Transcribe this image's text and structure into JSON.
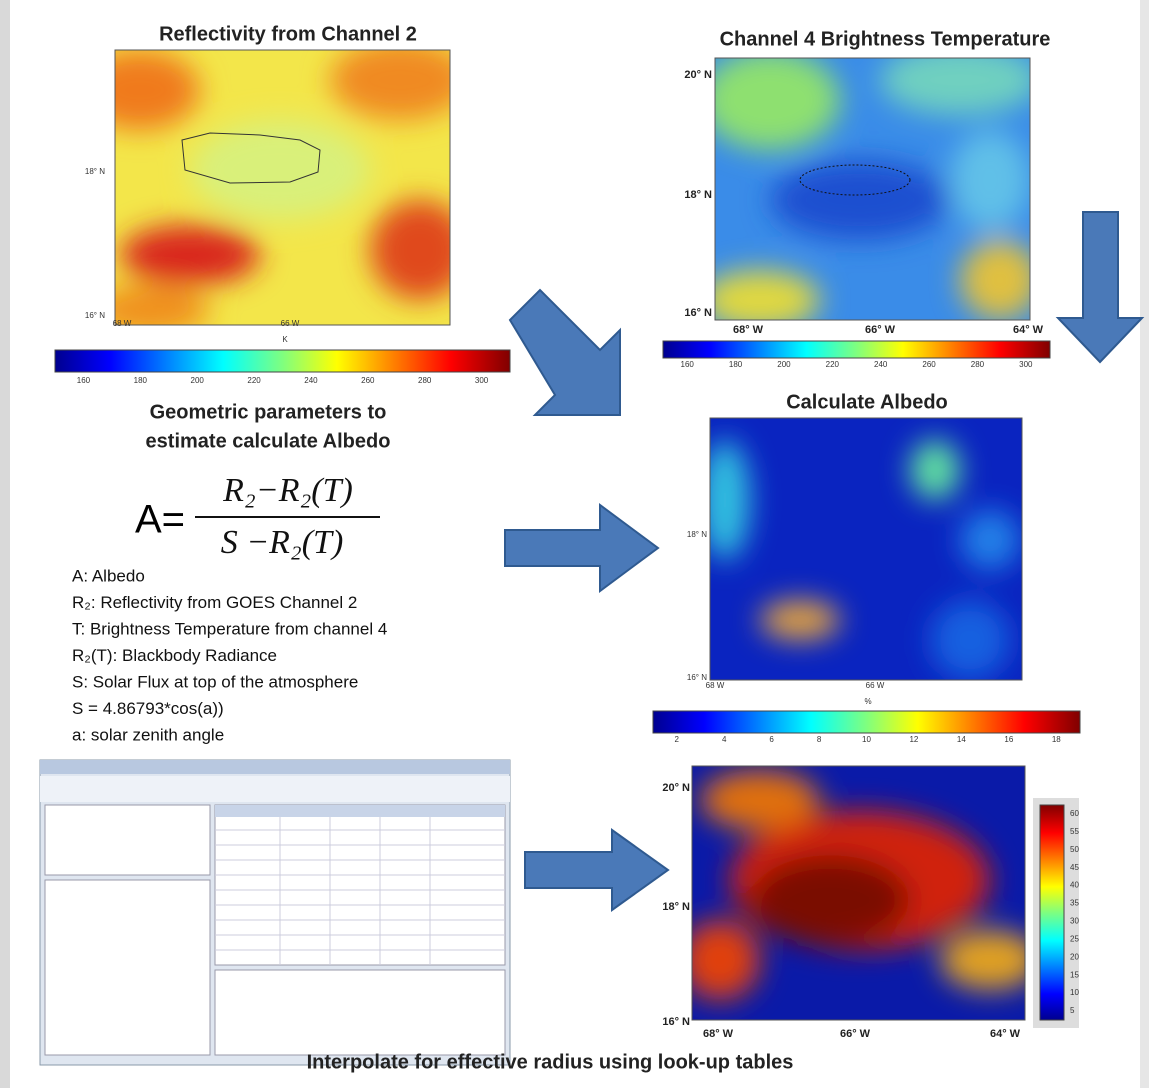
{
  "panels": {
    "reflectivity": {
      "title": "Reflectivity from Channel 2",
      "y_labels": [
        "18° N",
        "16° N"
      ],
      "x_labels": [
        "68 W",
        "66 W"
      ],
      "colorbar_unit": "K",
      "colorbar_ticks": [
        "160",
        "180",
        "200",
        "220",
        "240",
        "260",
        "280",
        "300"
      ]
    },
    "brightness": {
      "title": "Channel 4 Brightness Temperature",
      "y_labels": [
        "20° N",
        "18° N",
        "16° N"
      ],
      "x_labels": [
        "68° W",
        "66° W",
        "64° W"
      ],
      "colorbar_ticks": [
        "160",
        "180",
        "200",
        "220",
        "240",
        "260",
        "280",
        "300"
      ]
    },
    "albedo": {
      "title": "Calculate Albedo",
      "y_labels": [
        "18° N",
        "16° N"
      ],
      "x_labels": [
        "68 W",
        "66 W"
      ],
      "colorbar_unit": "%",
      "colorbar_ticks": [
        "2",
        "4",
        "6",
        "8",
        "10",
        "12",
        "14",
        "16",
        "18"
      ]
    },
    "effective_radius": {
      "y_labels": [
        "20° N",
        "18° N",
        "16° N"
      ],
      "x_labels": [
        "68° W",
        "66° W",
        "64° W"
      ],
      "colorbar_ticks": [
        "60",
        "55",
        "50",
        "45",
        "40",
        "35",
        "30",
        "25",
        "20",
        "15",
        "10",
        "5"
      ]
    }
  },
  "method": {
    "heading": [
      "Geometric parameters to",
      "estimate calculate Albedo"
    ],
    "formula": {
      "lhs": "A=",
      "numerator": "R₂−R₂(T)",
      "denominator": "S −R₂(T)"
    },
    "definitions": [
      "A: Albedo",
      "R₂: Reflectivity from GOES Channel 2",
      "T: Brightness Temperature from channel 4",
      "R₂(T): Blackbody Radiance",
      "S: Solar Flux at top of the atmosphere",
      "S = 4.86793*cos(a))",
      "a: solar zenith angle"
    ]
  },
  "caption": "Interpolate for effective radius using look-up tables"
}
